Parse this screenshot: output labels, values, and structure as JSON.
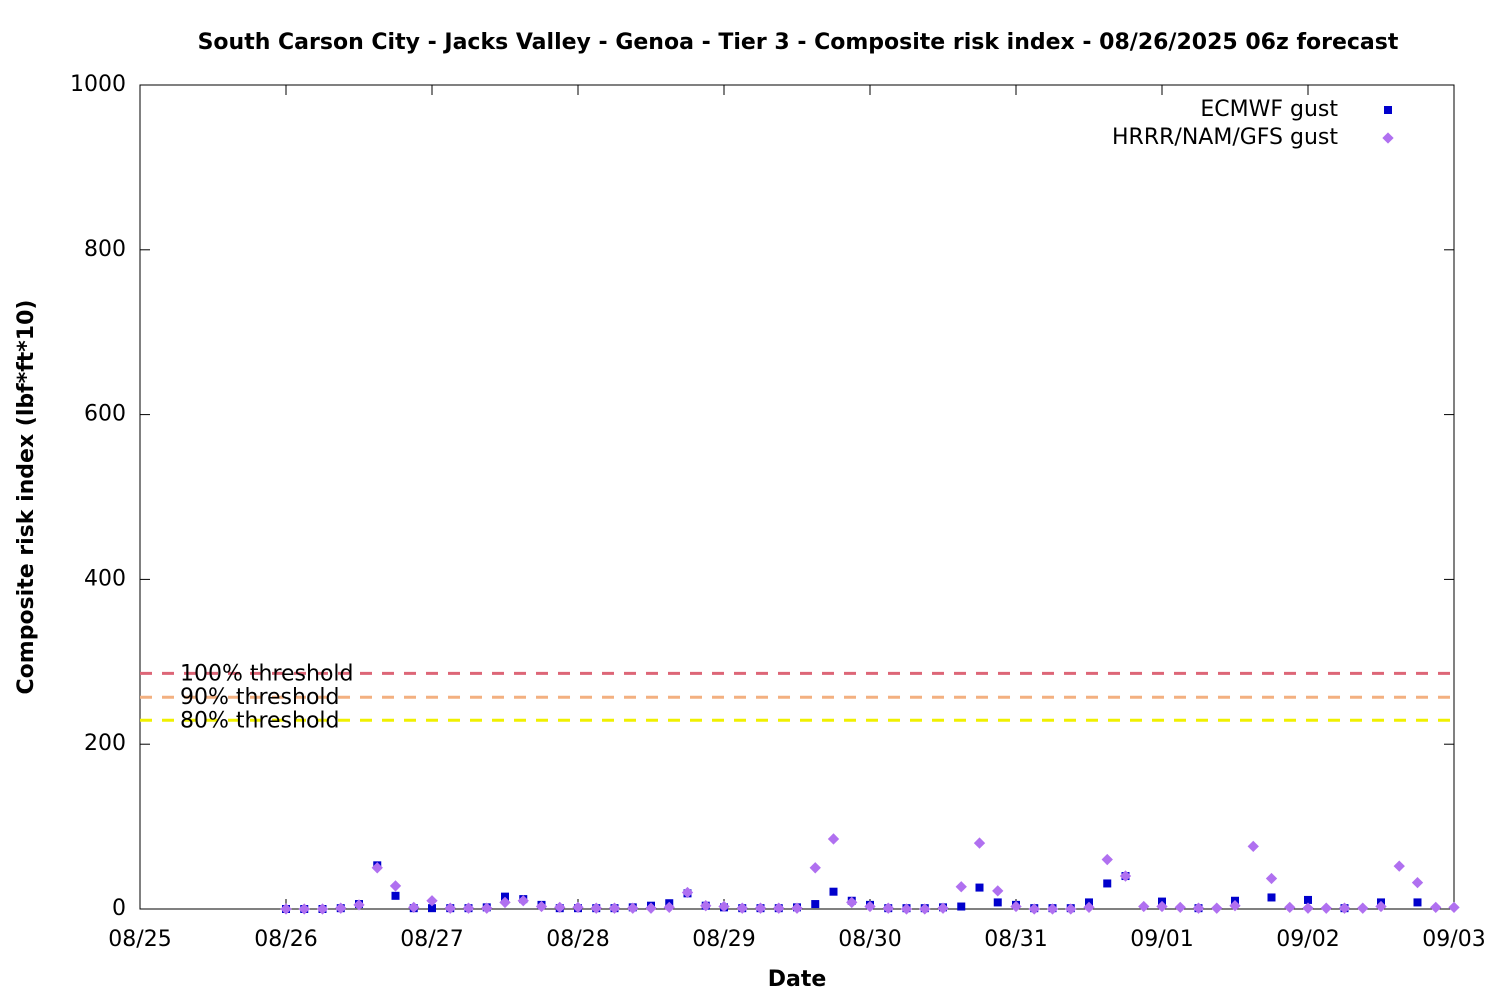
{
  "chart_data": {
    "type": "scatter",
    "title": "South Carson City - Jacks Valley - Genoa - Tier 3 - Composite risk index - 08/26/2025 06z forecast",
    "xlabel": "Date",
    "ylabel": "Composite risk index (lbf*ft*10)",
    "xlim": [
      0,
      9
    ],
    "xticks": [
      {
        "value": 0,
        "label": "08/25"
      },
      {
        "value": 1,
        "label": "08/26"
      },
      {
        "value": 2,
        "label": "08/27"
      },
      {
        "value": 3,
        "label": "08/28"
      },
      {
        "value": 4,
        "label": "08/29"
      },
      {
        "value": 5,
        "label": "08/30"
      },
      {
        "value": 6,
        "label": "08/31"
      },
      {
        "value": 7,
        "label": "09/01"
      },
      {
        "value": 8,
        "label": "09/02"
      },
      {
        "value": 9,
        "label": "09/03"
      }
    ],
    "ylim": [
      0,
      1000
    ],
    "yticks": [
      0,
      200,
      400,
      600,
      800,
      1000
    ],
    "legend": "top-right",
    "thresholds": [
      {
        "label": "100% threshold",
        "value": 286,
        "color": "#dd6677"
      },
      {
        "label": "90% threshold",
        "value": 257,
        "color": "#f3b080"
      },
      {
        "label": "80% threshold",
        "value": 229,
        "color": "#f0f000"
      }
    ],
    "series": [
      {
        "name": "ECMWF gust",
        "color": "#0000cc",
        "marker": "square",
        "x": [
          1,
          1.125,
          1.25,
          1.375,
          1.5,
          1.625,
          1.75,
          1.875,
          2,
          2.125,
          2.25,
          2.375,
          2.5,
          2.625,
          2.75,
          2.875,
          3,
          3.125,
          3.25,
          3.375,
          3.5,
          3.625,
          3.75,
          3.875,
          4,
          4.125,
          4.25,
          4.375,
          4.5,
          4.625,
          4.75,
          4.875,
          5,
          5.125,
          5.25,
          5.375,
          5.5,
          5.625,
          5.75,
          5.875,
          6,
          6.125,
          6.25,
          6.375,
          6.5,
          6.625,
          6.75,
          7,
          7.25,
          7.5,
          7.75,
          8,
          8.25,
          8.5,
          8.75
        ],
        "values": [
          0,
          0,
          0,
          1,
          6,
          53,
          16,
          1,
          1,
          1,
          1,
          2,
          15,
          12,
          5,
          1,
          1,
          1,
          1,
          2,
          4,
          7,
          19,
          4,
          2,
          1,
          1,
          1,
          2,
          6,
          21,
          10,
          5,
          1,
          1,
          1,
          2,
          3,
          26,
          8,
          5,
          1,
          1,
          1,
          8,
          31,
          40,
          9,
          1,
          10,
          14,
          11,
          1,
          8,
          8
        ]
      },
      {
        "name": "HRRR/NAM/GFS gust",
        "color": "#b070f0",
        "marker": "diamond",
        "x": [
          1,
          1.125,
          1.25,
          1.375,
          1.5,
          1.625,
          1.75,
          1.875,
          2,
          2.125,
          2.25,
          2.375,
          2.5,
          2.625,
          2.75,
          2.875,
          3,
          3.125,
          3.25,
          3.375,
          3.5,
          3.625,
          3.75,
          3.875,
          4,
          4.125,
          4.25,
          4.375,
          4.5,
          4.625,
          4.75,
          4.875,
          5,
          5.125,
          5.25,
          5.375,
          5.5,
          5.625,
          5.75,
          5.875,
          6,
          6.125,
          6.25,
          6.375,
          6.5,
          6.625,
          6.75,
          6.875,
          7,
          7.125,
          7.25,
          7.375,
          7.5,
          7.625,
          7.75,
          7.875,
          8,
          8.125,
          8.25,
          8.375,
          8.5,
          8.625,
          8.75,
          8.875,
          9
        ],
        "values": [
          0,
          0,
          0,
          1,
          5,
          50,
          28,
          2,
          10,
          1,
          1,
          1,
          8,
          10,
          3,
          2,
          2,
          1,
          1,
          1,
          1,
          2,
          20,
          4,
          3,
          1,
          1,
          1,
          1,
          50,
          85,
          8,
          3,
          1,
          0,
          0,
          1,
          27,
          80,
          22,
          3,
          0,
          0,
          0,
          2,
          60,
          40,
          3,
          3,
          2,
          1,
          1,
          4,
          76,
          37,
          2,
          1,
          1,
          1,
          1,
          3,
          52,
          32,
          2,
          2
        ]
      }
    ]
  }
}
